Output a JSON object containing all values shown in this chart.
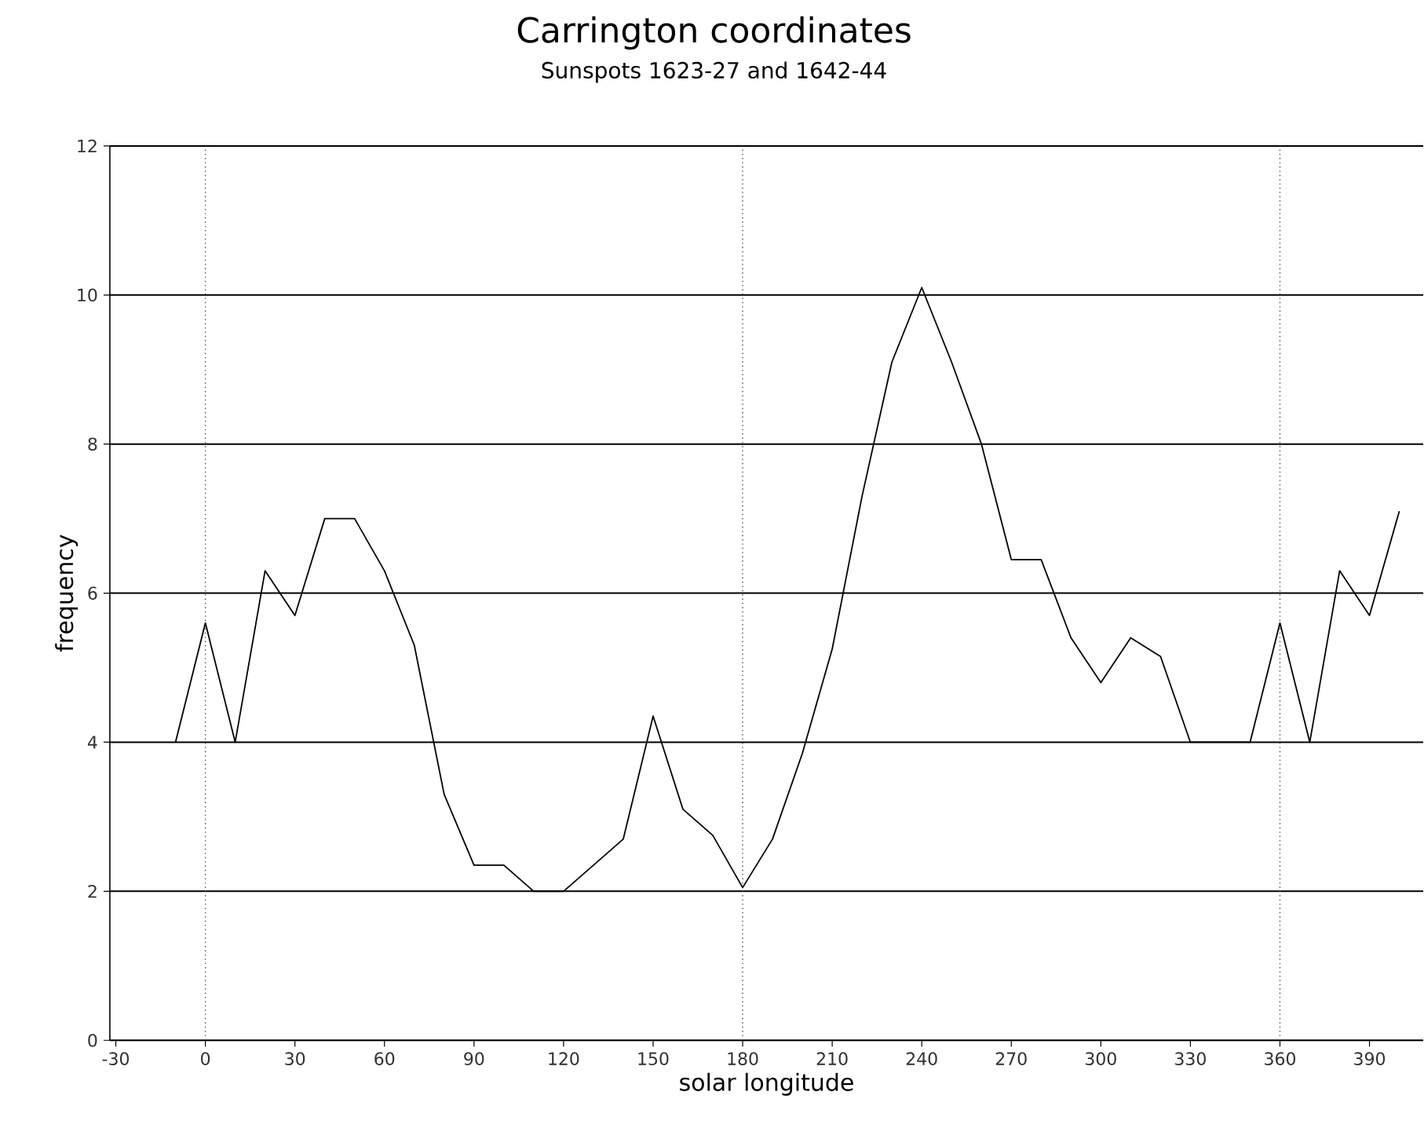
{
  "chart_data": {
    "type": "line",
    "title": "Carrington coordinates",
    "subtitle": "Sunspots 1623-27 and 1642-44",
    "xlabel": "solar longitude",
    "ylabel": "frequency",
    "x": [
      -10,
      0,
      10,
      20,
      30,
      40,
      50,
      60,
      70,
      80,
      90,
      100,
      110,
      120,
      140,
      150,
      160,
      170,
      180,
      190,
      200,
      210,
      220,
      230,
      240,
      250,
      260,
      270,
      280,
      290,
      300,
      310,
      320,
      330,
      340,
      350,
      360,
      370,
      380,
      390,
      400
    ],
    "series": [
      {
        "color": "#000000",
        "values": [
          4.0,
          5.6,
          4.0,
          6.3,
          5.7,
          7.0,
          7.0,
          6.3,
          5.3,
          3.3,
          2.35,
          2.35,
          2.0,
          2.0,
          2.7,
          4.35,
          3.1,
          2.75,
          2.05,
          2.7,
          3.85,
          5.25,
          7.3,
          9.1,
          10.1,
          9.1,
          8.0,
          6.45,
          6.45,
          5.4,
          4.8,
          5.4,
          5.15,
          4.0,
          4.0,
          4.0,
          5.6,
          4.0,
          6.3,
          5.7,
          7.1
        ]
      }
    ],
    "xlim": [
      -32,
      408
    ],
    "ylim": [
      0,
      12
    ],
    "xticks": [
      -30,
      0,
      30,
      60,
      90,
      120,
      150,
      180,
      210,
      240,
      270,
      300,
      330,
      360,
      390
    ],
    "yticks": [
      0,
      2,
      4,
      6,
      8,
      10,
      12
    ],
    "grid": "y",
    "marker": "none",
    "line_style": "solid",
    "ref_lines": [
      {
        "axis": "x",
        "value": 0,
        "line_style": "dotted"
      },
      {
        "axis": "x",
        "value": 180,
        "line_style": "dotted"
      },
      {
        "axis": "x",
        "value": 360,
        "line_style": "dotted"
      }
    ]
  }
}
